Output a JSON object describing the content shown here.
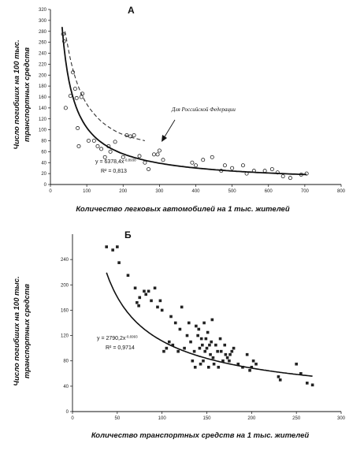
{
  "chart_data": [
    {
      "type": "scatter",
      "panel_label": "А",
      "xlabel": "Количество легковых автомобилей на 1 тыс. жителей",
      "ylabel_line1": "Число погибших на 100 тыс.",
      "ylabel_line2": "транспортных средств",
      "xlim": [
        0,
        800
      ],
      "ylim": [
        0,
        320
      ],
      "xticks": [
        "0",
        "100",
        "200",
        "300",
        "400",
        "500",
        "600",
        "700",
        "800"
      ],
      "yticks": [
        "0",
        "20",
        "40",
        "60",
        "80",
        "100",
        "120",
        "140",
        "160",
        "180",
        "200",
        "220",
        "240",
        "260",
        "280",
        "300",
        "320"
      ],
      "grid": false,
      "marker": "open-circle",
      "equation_line1": "y = 6378,4x",
      "equation_exp": "-0,8938",
      "r2_line": "R² = 0,813",
      "annotation": "Для Российской Федерации",
      "points": [
        [
          35,
          275
        ],
        [
          38,
          262
        ],
        [
          42,
          140
        ],
        [
          55,
          162
        ],
        [
          62,
          205
        ],
        [
          68,
          175
        ],
        [
          72,
          158
        ],
        [
          75,
          103
        ],
        [
          78,
          70
        ],
        [
          85,
          160
        ],
        [
          88,
          166
        ],
        [
          105,
          80
        ],
        [
          120,
          80
        ],
        [
          130,
          70
        ],
        [
          140,
          65
        ],
        [
          150,
          50
        ],
        [
          160,
          70
        ],
        [
          165,
          60
        ],
        [
          178,
          78
        ],
        [
          200,
          50
        ],
        [
          210,
          90
        ],
        [
          220,
          88
        ],
        [
          230,
          90
        ],
        [
          245,
          52
        ],
        [
          260,
          40
        ],
        [
          270,
          28
        ],
        [
          285,
          55
        ],
        [
          295,
          55
        ],
        [
          300,
          62
        ],
        [
          310,
          45
        ],
        [
          390,
          40
        ],
        [
          400,
          35
        ],
        [
          420,
          45
        ],
        [
          445,
          50
        ],
        [
          470,
          25
        ],
        [
          480,
          35
        ],
        [
          500,
          30
        ],
        [
          530,
          35
        ],
        [
          540,
          20
        ],
        [
          560,
          25
        ],
        [
          590,
          25
        ],
        [
          610,
          28
        ],
        [
          625,
          22
        ],
        [
          640,
          15
        ],
        [
          660,
          12
        ],
        [
          690,
          18
        ],
        [
          705,
          20
        ]
      ],
      "trend": {
        "a": 6378.4,
        "b": -0.8938,
        "from": 32,
        "to": 705
      },
      "russia_curve": [
        [
          40,
          280
        ],
        [
          60,
          210
        ],
        [
          90,
          155
        ],
        [
          130,
          120
        ],
        [
          170,
          100
        ],
        [
          210,
          88
        ],
        [
          260,
          80
        ]
      ]
    },
    {
      "type": "scatter",
      "panel_label": "Б",
      "xlabel": "Количество транспортных средств на 1 тыс. жителей",
      "ylabel_line1": "Число погибших на 100 тыс.",
      "ylabel_line2": "транспортных средств",
      "xlim": [
        0,
        300
      ],
      "ylim": [
        0,
        280
      ],
      "xticks": [
        "0",
        "50",
        "100",
        "150",
        "200",
        "250",
        "300"
      ],
      "yticks": [
        "0",
        "40",
        "80",
        "120",
        "160",
        "200",
        "240"
      ],
      "grid": false,
      "marker": "filled-square",
      "equation_line1": "y = 2790,2x",
      "equation_exp": "-0,6993",
      "r2_line": "R² = 0,9714",
      "points": [
        [
          38,
          260
        ],
        [
          45,
          255
        ],
        [
          50,
          260
        ],
        [
          52,
          235
        ],
        [
          62,
          215
        ],
        [
          70,
          195
        ],
        [
          72,
          172
        ],
        [
          74,
          167
        ],
        [
          75,
          180
        ],
        [
          80,
          190
        ],
        [
          82,
          185
        ],
        [
          85,
          190
        ],
        [
          88,
          175
        ],
        [
          92,
          195
        ],
        [
          95,
          165
        ],
        [
          98,
          175
        ],
        [
          100,
          160
        ],
        [
          102,
          95
        ],
        [
          105,
          100
        ],
        [
          108,
          110
        ],
        [
          110,
          150
        ],
        [
          112,
          105
        ],
        [
          115,
          140
        ],
        [
          118,
          95
        ],
        [
          120,
          130
        ],
        [
          122,
          165
        ],
        [
          125,
          100
        ],
        [
          128,
          120
        ],
        [
          130,
          140
        ],
        [
          132,
          110
        ],
        [
          134,
          80
        ],
        [
          136,
          95
        ],
        [
          137,
          70
        ],
        [
          138,
          135
        ],
        [
          140,
          120
        ],
        [
          141,
          130
        ],
        [
          142,
          100
        ],
        [
          143,
          75
        ],
        [
          144,
          115
        ],
        [
          145,
          105
        ],
        [
          146,
          80
        ],
        [
          147,
          140
        ],
        [
          148,
          95
        ],
        [
          149,
          115
        ],
        [
          150,
          100
        ],
        [
          151,
          125
        ],
        [
          152,
          70
        ],
        [
          153,
          105
        ],
        [
          154,
          90
        ],
        [
          155,
          110
        ],
        [
          156,
          145
        ],
        [
          157,
          85
        ],
        [
          158,
          75
        ],
        [
          160,
          105
        ],
        [
          162,
          95
        ],
        [
          163,
          70
        ],
        [
          165,
          115
        ],
        [
          166,
          95
        ],
        [
          168,
          80
        ],
        [
          170,
          105
        ],
        [
          171,
          90
        ],
        [
          173,
          85
        ],
        [
          175,
          80
        ],
        [
          176,
          90
        ],
        [
          178,
          95
        ],
        [
          180,
          100
        ],
        [
          185,
          75
        ],
        [
          190,
          70
        ],
        [
          195,
          90
        ],
        [
          198,
          65
        ],
        [
          200,
          70
        ],
        [
          202,
          80
        ],
        [
          205,
          75
        ],
        [
          230,
          55
        ],
        [
          232,
          50
        ],
        [
          250,
          75
        ],
        [
          255,
          60
        ],
        [
          262,
          45
        ],
        [
          268,
          42
        ]
      ],
      "trend": {
        "a": 2790.2,
        "b": -0.6993,
        "from": 38,
        "to": 268
      }
    }
  ]
}
